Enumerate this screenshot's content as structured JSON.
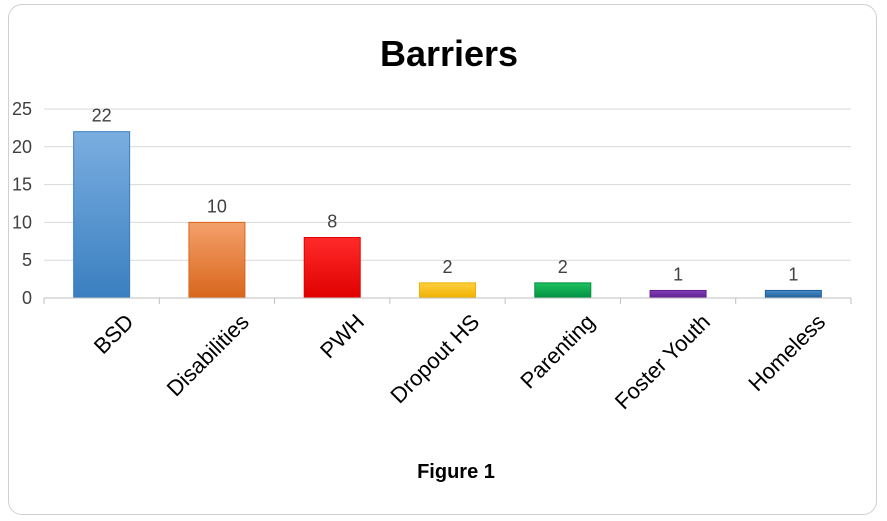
{
  "chart_data": {
    "type": "bar",
    "title": "Barriers",
    "caption": "Figure 1",
    "xlabel": "",
    "ylabel": "",
    "categories": [
      "BSD",
      "Disabilities",
      "PWH",
      "Dropout HS",
      "Parenting",
      "Foster Youth",
      "Homeless"
    ],
    "values": [
      22,
      10,
      8,
      2,
      2,
      1,
      1
    ],
    "ylim": [
      0,
      25
    ],
    "yticks": [
      0,
      5,
      10,
      15,
      20,
      25
    ],
    "grid": true,
    "legend": "none",
    "bar_colors": [
      "#5b9bd5",
      "#ed7d31",
      "#ff0000",
      "#ffc000",
      "#00b050",
      "#7030a0",
      "#2e75b6"
    ],
    "bar_colors_top": [
      "#7aaee0",
      "#f4a06a",
      "#ff2a2a",
      "#ffd040",
      "#20c060",
      "#8040b8",
      "#4a8cc8"
    ],
    "bar_colors_bottom": [
      "#3a7fc0",
      "#d8661c",
      "#e00000",
      "#f0b000",
      "#009040",
      "#602090",
      "#1f5f9a"
    ]
  }
}
